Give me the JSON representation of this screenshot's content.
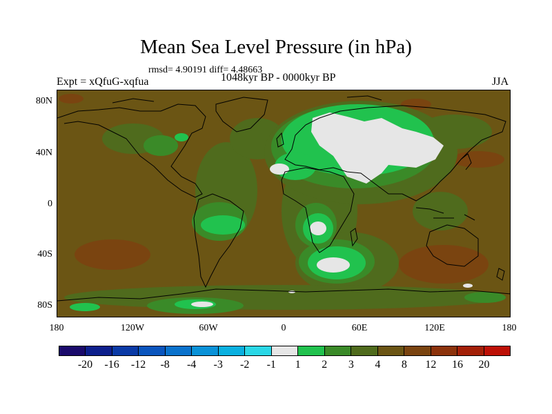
{
  "title": "Mean Sea Level Pressure (in hPa)",
  "stats_line": "rmsd= 4.90191 diff= 4.48663",
  "experiment": "Expt = xQfuG-xqfua",
  "period": "1048kyr BP - 0000kyr BP",
  "season": "JJA",
  "lat_labels": [
    "80N",
    "40N",
    "0",
    "40S",
    "80S"
  ],
  "lon_labels": [
    "180",
    "120W",
    "60W",
    "0",
    "60E",
    "120E",
    "180"
  ],
  "colorbar": {
    "colors": [
      "#1a0a6b",
      "#0d1f8c",
      "#0a3aa6",
      "#0a55bd",
      "#0a72cc",
      "#0a92d8",
      "#0ab0e0",
      "#2ad7e6",
      "#e6e6e6",
      "#21c24e",
      "#3a8a28",
      "#4f6b1d",
      "#6b5514",
      "#7a4410",
      "#8c330c",
      "#a32008",
      "#bd1006"
    ],
    "labels": [
      "-20",
      "-16",
      "-12",
      "-8",
      "-4",
      "-3",
      "-2",
      "-1",
      "1",
      "2",
      "3",
      "4",
      "8",
      "12",
      "16",
      "20"
    ]
  }
}
